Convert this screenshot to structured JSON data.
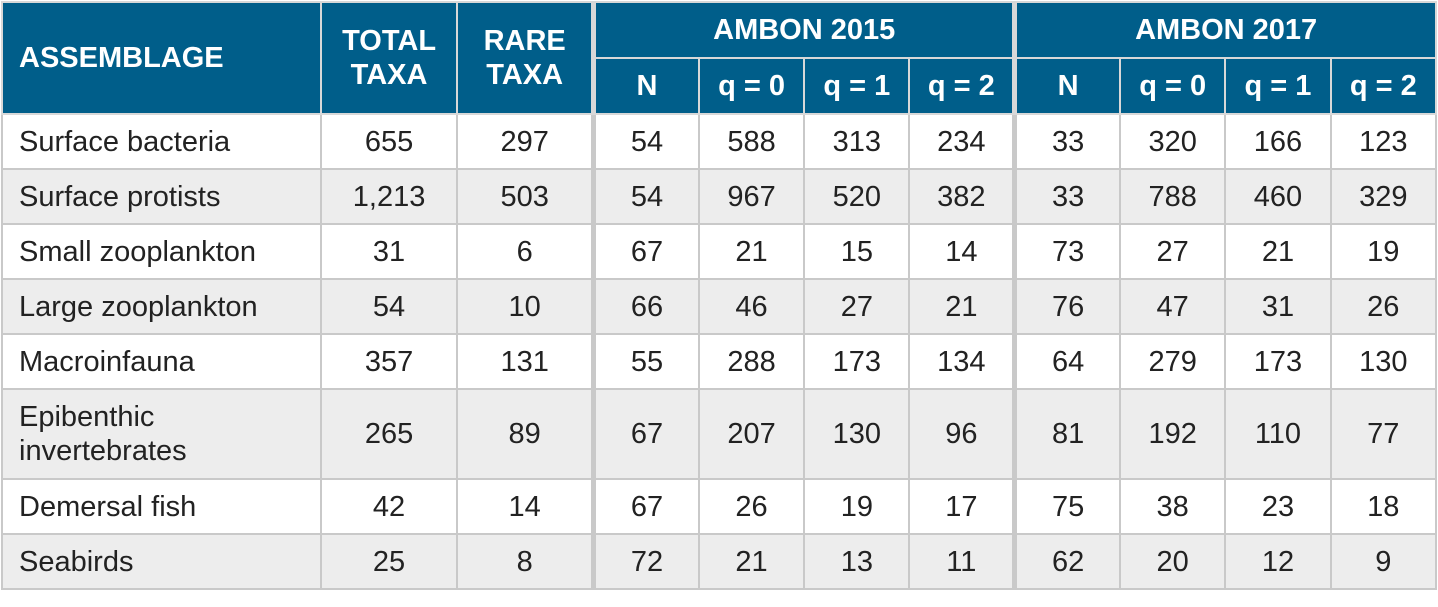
{
  "header": {
    "assemblage": "ASSEMBLAGE",
    "total_taxa": "TOTAL TAXA",
    "rare_taxa": "RARE TAXA",
    "groups": [
      "AMBON 2015",
      "AMBON 2017"
    ],
    "subcolumns": [
      "N",
      "q = 0",
      "q = 1",
      "q = 2"
    ]
  },
  "rows": [
    {
      "name": "Surface bacteria",
      "total": "655",
      "rare": "297",
      "y2015": [
        "54",
        "588",
        "313",
        "234"
      ],
      "y2017": [
        "33",
        "320",
        "166",
        "123"
      ]
    },
    {
      "name": "Surface protists",
      "total": "1,213",
      "rare": "503",
      "y2015": [
        "54",
        "967",
        "520",
        "382"
      ],
      "y2017": [
        "33",
        "788",
        "460",
        "329"
      ]
    },
    {
      "name": "Small zooplankton",
      "total": "31",
      "rare": "6",
      "y2015": [
        "67",
        "21",
        "15",
        "14"
      ],
      "y2017": [
        "73",
        "27",
        "21",
        "19"
      ]
    },
    {
      "name": "Large zooplankton",
      "total": "54",
      "rare": "10",
      "y2015": [
        "66",
        "46",
        "27",
        "21"
      ],
      "y2017": [
        "76",
        "47",
        "31",
        "26"
      ]
    },
    {
      "name": "Macroinfauna",
      "total": "357",
      "rare": "131",
      "y2015": [
        "55",
        "288",
        "173",
        "134"
      ],
      "y2017": [
        "64",
        "279",
        "173",
        "130"
      ]
    },
    {
      "name": "Epibenthic invertebrates",
      "total": "265",
      "rare": "89",
      "y2015": [
        "67",
        "207",
        "130",
        "96"
      ],
      "y2017": [
        "81",
        "192",
        "110",
        "77"
      ]
    },
    {
      "name": "Demersal fish",
      "total": "42",
      "rare": "14",
      "y2015": [
        "67",
        "26",
        "19",
        "17"
      ],
      "y2017": [
        "75",
        "38",
        "23",
        "18"
      ]
    },
    {
      "name": "Seabirds",
      "total": "25",
      "rare": "8",
      "y2015": [
        "72",
        "21",
        "13",
        "11"
      ],
      "y2017": [
        "62",
        "20",
        "12",
        "9"
      ]
    }
  ]
}
